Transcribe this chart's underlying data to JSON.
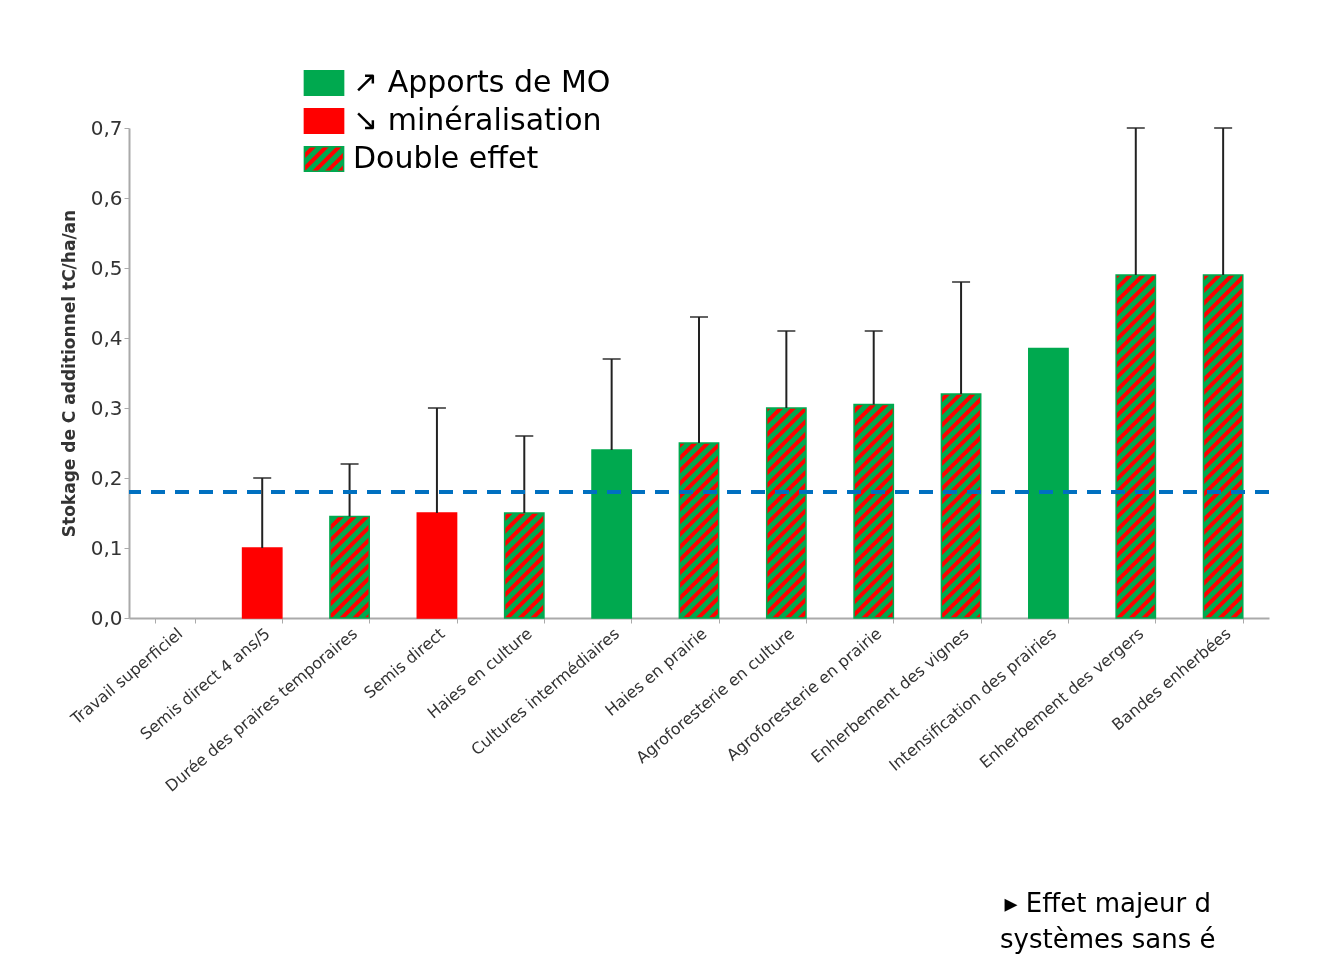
{
  "chart_data": {
    "type": "bar",
    "ylabel": "Stokage de C additionnel tC/ha/an",
    "categories": [
      "Travail superficiel",
      "Semis direct 4 ans/5",
      "Durée des praires temporaires",
      "Semis direct",
      "Haies en culture",
      "Cultures intermédiaires",
      "Haies en prairie",
      "Agroforesterie en culture",
      "Agroforesterie en prairie",
      "Enherbement des vignes",
      "Intensification des prairies",
      "Enherbement des vergers",
      "Bandes enherbées"
    ],
    "series": [
      {
        "name": "↗ Apports de MO",
        "color": "#00a94f",
        "values": [
          null,
          null,
          null,
          null,
          null,
          0.24,
          null,
          null,
          null,
          null,
          0.385,
          null,
          null
        ],
        "errors": [
          null,
          null,
          null,
          null,
          null,
          [
            0.24,
            0.37
          ],
          null,
          null,
          null,
          null,
          null,
          null,
          null
        ]
      },
      {
        "name": "↘ minéralisation",
        "color": "#ff0000",
        "values": [
          null,
          0.1,
          null,
          0.15,
          null,
          null,
          null,
          null,
          null,
          null,
          null,
          null,
          null
        ],
        "errors": [
          null,
          [
            0.1,
            0.2
          ],
          null,
          [
            0.15,
            0.3
          ],
          null,
          null,
          null,
          null,
          null,
          null,
          null,
          null,
          null
        ]
      },
      {
        "name": "Double effet",
        "color": "#00a94f",
        "values": [
          null,
          null,
          0.145,
          null,
          0.15,
          null,
          0.25,
          0.3,
          0.305,
          0.32,
          null,
          0.49,
          0.49
        ],
        "errors": [
          null,
          null,
          [
            0.145,
            0.22
          ],
          null,
          [
            0.15,
            0.26
          ],
          null,
          [
            0.25,
            0.43
          ],
          [
            0.3,
            0.41
          ],
          [
            0.305,
            0.41
          ],
          [
            0.32,
            0.48
          ],
          null,
          [
            0.49,
            0.7
          ],
          [
            0.49,
            0.7
          ]
        ]
      }
    ],
    "ylim": [
      0,
      0.7
    ],
    "yticks": [
      {
        "value": 0,
        "label": "0,0"
      },
      {
        "value": 0.1,
        "label": "0,1"
      },
      {
        "value": 0.2,
        "label": "0,2"
      },
      {
        "value": 0.3,
        "label": "0,3"
      },
      {
        "value": 0.4,
        "label": "0,4"
      },
      {
        "value": 0.5,
        "label": "0,5"
      },
      {
        "value": 0.6,
        "label": "0,6"
      },
      {
        "value": 0.7,
        "label": "0,7"
      }
    ],
    "ref_lines": [
      {
        "axis": "y",
        "value": 0.18,
        "color": "#0070c0",
        "line_style": "dashed"
      }
    ],
    "legend": "top left",
    "grid": false,
    "annotations": [
      "▸ Effet majeur d",
      "systèmes sans é"
    ]
  }
}
